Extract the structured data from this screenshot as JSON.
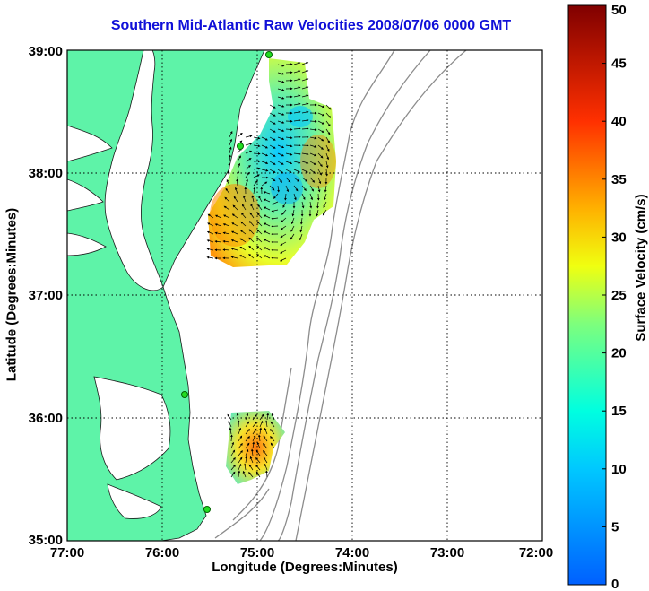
{
  "title": "Southern Mid-Atlantic Raw Velocities 2008/07/06 0000 GMT",
  "xlabel": "Longitude (Degrees:Minutes)",
  "ylabel": "Latitude (Degrees:Minutes)",
  "colorbar": {
    "label": "Surface Velocity (cm/s)",
    "ticks": [
      "0",
      "5",
      "10",
      "15",
      "20",
      "25",
      "30",
      "35",
      "40",
      "45",
      "50"
    ],
    "range": [
      0,
      50
    ]
  },
  "x_ticks": [
    "77:00",
    "76:00",
    "75:00",
    "74:00",
    "73:00",
    "72:00"
  ],
  "y_ticks": [
    "39:00",
    "38:00",
    "37:00",
    "36:00",
    "35:00"
  ],
  "map": {
    "extent_lon": [
      -77,
      -72
    ],
    "extent_lat": [
      35,
      39
    ],
    "land_color": "#5ef3a8",
    "grid": "dotted"
  }
}
